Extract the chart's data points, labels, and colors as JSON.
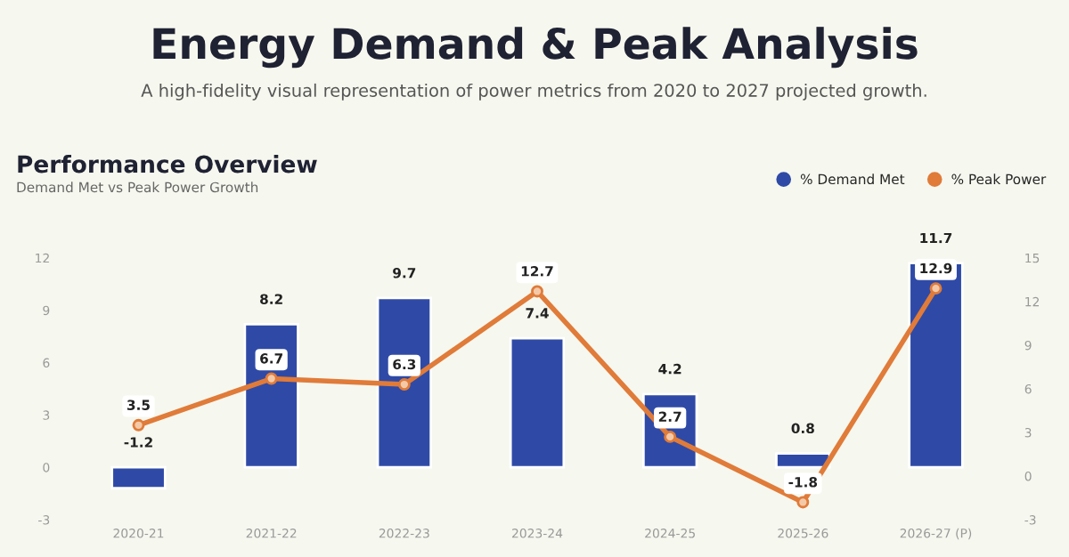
{
  "chart_data": {
    "type": "bar",
    "title": "Energy Demand & Peak Analysis",
    "subtitle": "A high-fidelity visual representation of power metrics from 2020 to 2027 projected growth.",
    "annotations": [
      "Performance Overview",
      "Demand Met vs Peak Power Growth"
    ],
    "categories": [
      "2020-21",
      "2021-22",
      "2022-23",
      "2023-24",
      "2024-25",
      "2025-26",
      "2026-27 (P)"
    ],
    "series": [
      {
        "name": "% Demand Met",
        "color": "#2f4aa6",
        "values": [
          -1.2,
          8.2,
          9.7,
          7.4,
          4.2,
          0.8,
          11.7
        ]
      },
      {
        "name": "% Peak Power",
        "type": "line",
        "axis": "y2",
        "color": "#e07b39",
        "values": [
          3.5,
          6.7,
          6.3,
          12.7,
          2.7,
          -1.8,
          12.9
        ]
      }
    ],
    "ylim": [
      -3,
      12
    ],
    "yticks": [
      -3,
      0,
      3,
      6,
      9,
      12
    ],
    "y2lim": [
      -3,
      15
    ],
    "y2ticks": [
      -3,
      0,
      3,
      6,
      9,
      12,
      15
    ],
    "data_labels": true,
    "legend": "top right",
    "grid": false,
    "marker": "circle",
    "line_style": "solid"
  }
}
